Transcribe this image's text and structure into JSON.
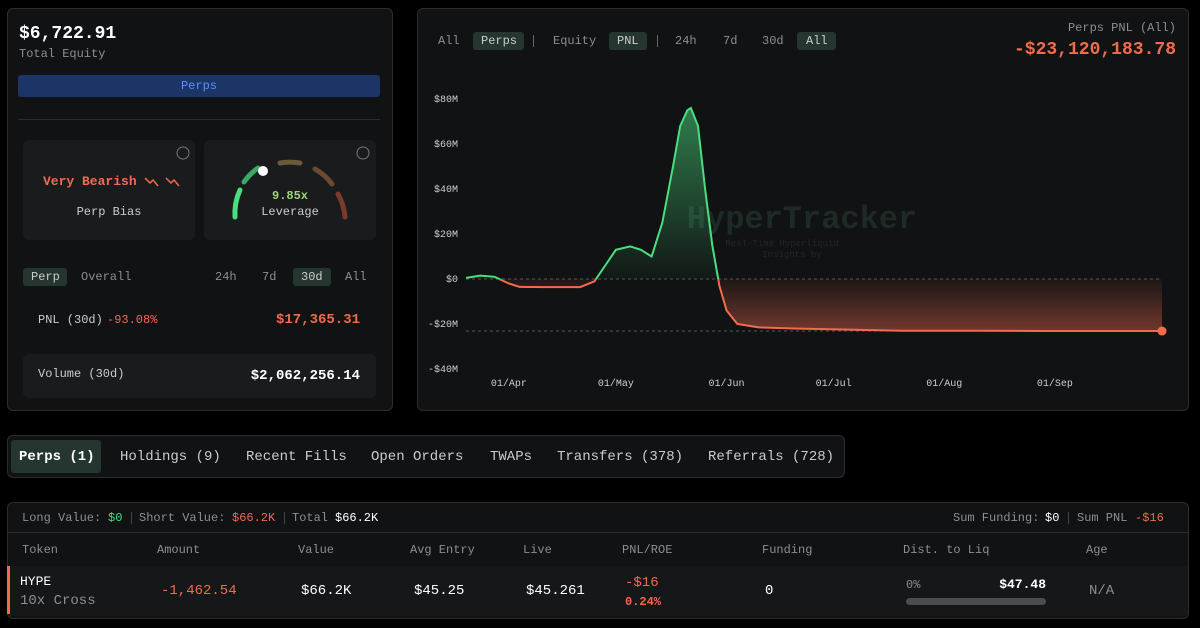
{
  "summary": {
    "equity": "$6,722.91",
    "equity_label": "Total Equity",
    "tab": "Perps",
    "bias": "Very Bearish",
    "bias_label": "Perp Bias",
    "leverage": "9.85x",
    "leverage_label": "Leverage",
    "scopes": [
      "Perp",
      "Overall"
    ],
    "ranges": [
      "24h",
      "7d",
      "30d",
      "All"
    ],
    "pnl_label": "PNL (30d)",
    "pnl_pct": "-93.08%",
    "pnl_value": "$17,365.31",
    "volume_label": "Volume (30d)",
    "volume_value": "$2,062,256.14"
  },
  "toolbar": [
    "All",
    "Perps",
    "Equity",
    "PNL",
    "24h",
    "7d",
    "30d",
    "All"
  ],
  "header": {
    "label": "Perps PNL (All)",
    "value": "-$23,120,183.78"
  },
  "watermark": {
    "title": "HyperTracker",
    "line1": "Real-Time Hyperliquid",
    "line2": "Insights by"
  },
  "chart_data": {
    "type": "line",
    "color_positive": "#4ade80",
    "color_negative": "#f26b4f",
    "x": [
      -12,
      -8,
      -4,
      0,
      3,
      10,
      20,
      24,
      27,
      30,
      34,
      37,
      40,
      43,
      46,
      48,
      50,
      51,
      53,
      55,
      57,
      59,
      61,
      64,
      70,
      80,
      95,
      110,
      130,
      150,
      183
    ],
    "values": [
      0.5,
      1.5,
      1,
      -2,
      -3.5,
      -3.6,
      -3.6,
      -1,
      6,
      13,
      14.5,
      13,
      10,
      25,
      50,
      68,
      75,
      76,
      68,
      40,
      15,
      -3,
      -14,
      -20,
      -21.5,
      -22,
      -22.5,
      -23,
      -23,
      -23.1,
      -23.12
    ],
    "xlim": [
      -12,
      183
    ],
    "xticks": [
      {
        "value": 0,
        "label": "01/Apr"
      },
      {
        "value": 30,
        "label": "01/May"
      },
      {
        "value": 61,
        "label": "01/Jun"
      },
      {
        "value": 91,
        "label": "01/Jul"
      },
      {
        "value": 122,
        "label": "01/Aug"
      },
      {
        "value": 153,
        "label": "01/Sep"
      }
    ],
    "ylim": [
      -40,
      80
    ],
    "yticks": [
      {
        "value": 80,
        "label": "$80M"
      },
      {
        "value": 60,
        "label": "$60M"
      },
      {
        "value": 40,
        "label": "$40M"
      },
      {
        "value": 20,
        "label": "$20M"
      },
      {
        "value": 0,
        "label": "$0"
      },
      {
        "value": -20,
        "label": "-$20M"
      },
      {
        "value": -40,
        "label": "-$40M"
      }
    ]
  },
  "tabs": [
    "Perps (1)",
    "Holdings (9)",
    "Recent Fills",
    "Open Orders",
    "TWAPs",
    "Transfers (378)",
    "Referrals (728)"
  ],
  "positions": {
    "long_label": "Long Value:",
    "long_value": "$0",
    "short_label": "Short Value:",
    "short_value": "$66.2K",
    "total_label": "Total",
    "total_value": "$66.2K",
    "funding_label": "Sum Funding:",
    "funding_value": "$0",
    "pnl_label": "Sum PNL",
    "pnl_value": "-$16",
    "columns": [
      "Token",
      "Amount",
      "Value",
      "Avg Entry",
      "Live",
      "PNL/ROE",
      "Funding",
      "Dist. to Liq",
      "Age"
    ],
    "row": {
      "token": "HYPE",
      "mode": "10x Cross",
      "amount": "-1,462.54",
      "value": "$66.2K",
      "entry": "$45.25",
      "live": "$45.261",
      "pnl": "-$16",
      "roe": "0.24%",
      "funding": "0",
      "liq_pct": "0%",
      "liq_price": "$47.48",
      "age": "N/A"
    }
  }
}
